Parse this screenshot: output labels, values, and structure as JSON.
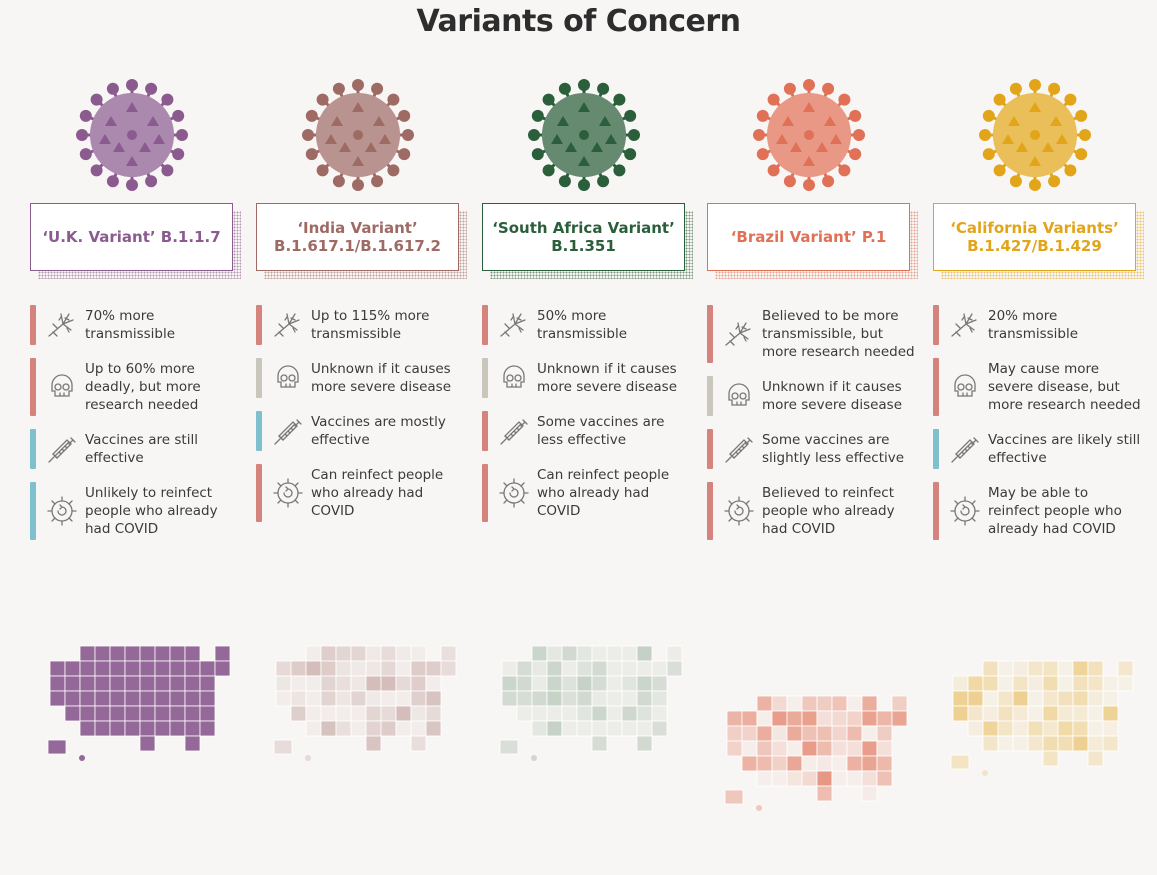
{
  "page": {
    "title": "Variants of Concern"
  },
  "colors": {
    "risk": "#d4847c",
    "unknown": "#c9c6bc",
    "good": "#7fc0cf"
  },
  "variants": [
    {
      "name": "‘U.K. Variant’ B.1.1.7",
      "color": "#8b5b8f",
      "facts": [
        {
          "icon": "transmission-icon",
          "status": "risk",
          "text": "70% more transmissible"
        },
        {
          "icon": "skull-icon",
          "status": "risk",
          "text": "Up to 60% more deadly, but more research needed"
        },
        {
          "icon": "syringe-icon",
          "status": "good",
          "text": "Vaccines are still effective"
        },
        {
          "icon": "reinfection-icon",
          "status": "good",
          "text": "Unlikely to reinfect people who already had COVID"
        }
      ]
    },
    {
      "name": "‘India Variant’ B.1.617.1/B.1.617.2",
      "color": "#9e6a64",
      "facts": [
        {
          "icon": "transmission-icon",
          "status": "risk",
          "text": "Up to 115% more transmissible"
        },
        {
          "icon": "skull-icon",
          "status": "unknown",
          "text": "Unknown if it causes more severe disease"
        },
        {
          "icon": "syringe-icon",
          "status": "good",
          "text": "Vaccines are mostly effective"
        },
        {
          "icon": "reinfection-icon",
          "status": "risk",
          "text": "Can reinfect people who already had COVID"
        }
      ]
    },
    {
      "name": "‘South Africa Variant’ B.1.351",
      "color": "#2b5e3a",
      "facts": [
        {
          "icon": "transmission-icon",
          "status": "risk",
          "text": "50% more transmissible"
        },
        {
          "icon": "skull-icon",
          "status": "unknown",
          "text": "Unknown if it causes more severe disease"
        },
        {
          "icon": "syringe-icon",
          "status": "risk",
          "text": "Some vaccines are less effective"
        },
        {
          "icon": "reinfection-icon",
          "status": "risk",
          "text": "Can reinfect people who already had COVID"
        }
      ]
    },
    {
      "name": "‘Brazil Variant’ P.1",
      "color": "#e07156",
      "facts": [
        {
          "icon": "transmission-icon",
          "status": "risk",
          "text": "Believed to be more transmissible, but more research needed"
        },
        {
          "icon": "skull-icon",
          "status": "unknown",
          "text": "Unknown if it causes more severe disease"
        },
        {
          "icon": "syringe-icon",
          "status": "risk",
          "text": "Some vaccines are slightly less effective"
        },
        {
          "icon": "reinfection-icon",
          "status": "risk",
          "text": "Believed to reinfect people who already had COVID"
        }
      ]
    },
    {
      "name": "‘California Variants’ B.1.427/B.1.429",
      "color": "#e2a51a",
      "facts": [
        {
          "icon": "transmission-icon",
          "status": "risk",
          "text": "20% more transmissible"
        },
        {
          "icon": "skull-icon",
          "status": "risk",
          "text": "May cause more severe disease, but more research needed"
        },
        {
          "icon": "syringe-icon",
          "status": "good",
          "text": "Vaccines are likely still effective"
        },
        {
          "icon": "reinfection-icon",
          "status": "risk",
          "text": "May be able to reinfect people who already had COVID"
        }
      ]
    }
  ]
}
